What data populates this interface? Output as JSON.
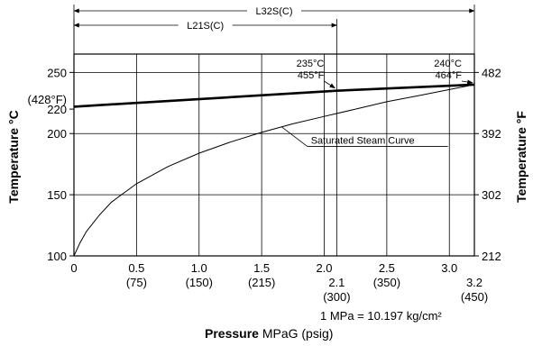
{
  "chart_data": {
    "type": "line",
    "title": "",
    "xlabel_bold": "Pressure",
    "xlabel_rest": " MPaG (psig)",
    "ylabel_left": "Temperature °C",
    "ylabel_right": "Temperature °F",
    "xlim": [
      0,
      3.2
    ],
    "ylim": [
      100,
      265
    ],
    "grid": true,
    "x_ticks": [
      {
        "x": 0,
        "label": "0",
        "sub": ""
      },
      {
        "x": 0.5,
        "label": "0.5",
        "sub": "(75)"
      },
      {
        "x": 1.0,
        "label": "1.0",
        "sub": "(150)"
      },
      {
        "x": 1.5,
        "label": "1.5",
        "sub": "(215)"
      },
      {
        "x": 2.0,
        "label": "2.0",
        "sub": ""
      },
      {
        "x": 2.1,
        "label": "2.1",
        "sub": "(300)"
      },
      {
        "x": 2.5,
        "label": "2.5",
        "sub": "(350)"
      },
      {
        "x": 3.0,
        "label": "3.0",
        "sub": ""
      },
      {
        "x": 3.2,
        "label": "3.2",
        "sub": "(450)"
      }
    ],
    "y_ticks_left": [
      {
        "y": 100,
        "label": "100"
      },
      {
        "y": 150,
        "label": "150"
      },
      {
        "y": 200,
        "label": "200"
      },
      {
        "y": 220,
        "label": "220"
      },
      {
        "y": 250,
        "label": "250"
      }
    ],
    "y_extra_left": {
      "y": 228,
      "label": "(428°F)"
    },
    "y_ticks_right": [
      {
        "y": 100,
        "label": "212"
      },
      {
        "y": 150,
        "label": "302"
      },
      {
        "y": 200,
        "label": "392"
      },
      {
        "y": 250,
        "label": "482"
      }
    ],
    "series": [
      {
        "key": "max_temperature",
        "x": [
          0,
          2.1,
          3.2
        ],
        "y": [
          222,
          235,
          240
        ]
      },
      {
        "key": "saturated_steam",
        "x": [
          0,
          0.05,
          0.1,
          0.2,
          0.3,
          0.5,
          0.75,
          1.0,
          1.25,
          1.5,
          1.75,
          2.0,
          2.25,
          2.5,
          2.75,
          3.0,
          3.2
        ],
        "y": [
          100,
          111,
          120,
          133,
          144,
          159,
          173,
          184,
          193,
          201,
          208,
          214,
          220,
          226,
          231,
          236,
          240
        ]
      }
    ],
    "annotations": [
      {
        "key": "pt1_c",
        "text": "235°C",
        "x": 2.1,
        "y": 235
      },
      {
        "key": "pt1_f",
        "text": "455°F",
        "x": 2.1,
        "y": 235
      },
      {
        "key": "pt2_c",
        "text": "240°C",
        "x": 3.2,
        "y": 240
      },
      {
        "key": "pt2_f",
        "text": "464°F",
        "x": 3.2,
        "y": 240
      },
      {
        "key": "steam_label",
        "text": "Saturated Steam Curve",
        "x": 1.85,
        "y": 205
      }
    ],
    "ranges": [
      {
        "key": "l32s",
        "label": "L32S(C)",
        "from": 0,
        "to": 3.2
      },
      {
        "key": "l21s",
        "label": "L21S(C)",
        "from": 0,
        "to": 2.1
      }
    ],
    "footnote": "1 MPa = 10.197 kg/cm²"
  }
}
